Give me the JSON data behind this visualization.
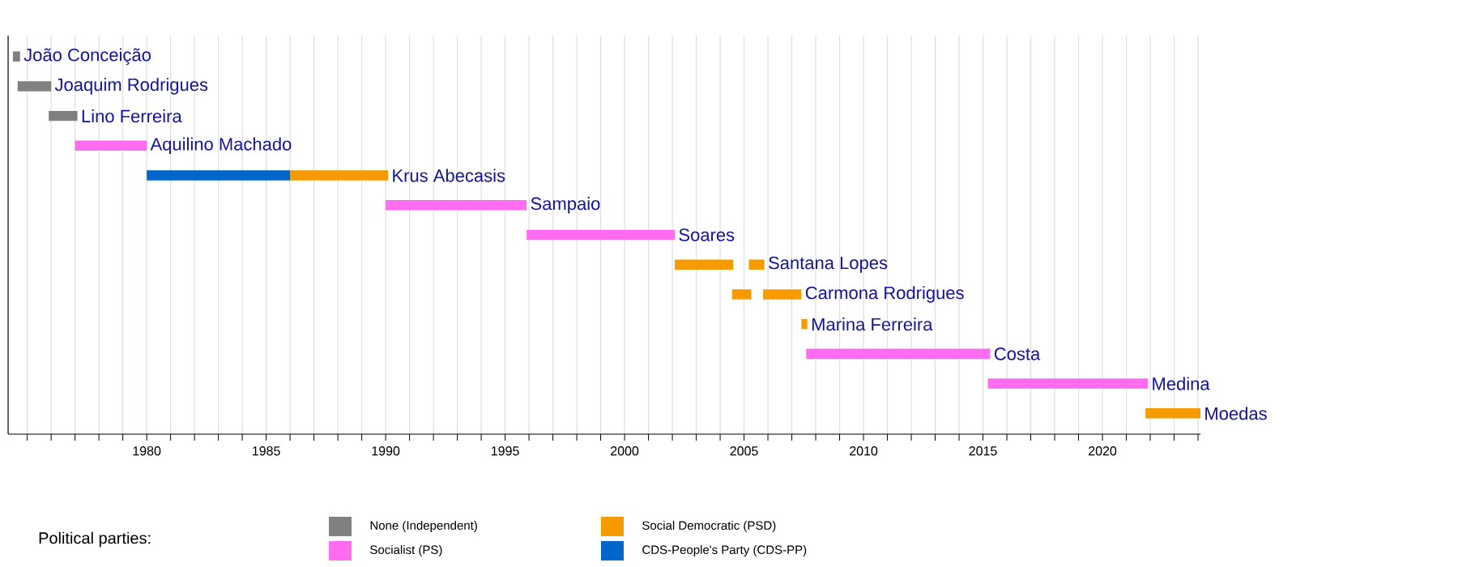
{
  "chart_data": {
    "type": "bar",
    "orientation": "horizontal",
    "legend_title": "Political parties:",
    "categories": [
      "João Conceição",
      "Joaquim Rodrigues",
      "Lino Ferreira",
      "Aquilino Machado",
      "Krus Abecasis",
      "Sampaio",
      "Soares",
      "Santana Lopes",
      "Carmona Rodrigues",
      "Marina Ferreira",
      "Costa",
      "Medina",
      "Moedas"
    ],
    "series": [
      {
        "name": "None (Independent)",
        "color": "#808080",
        "base": [
          1974.4,
          1974.6,
          1975.9,
          null,
          null,
          null,
          null,
          null,
          null,
          null,
          null,
          null,
          null
        ],
        "values": [
          0.3,
          1.4,
          1.2,
          null,
          null,
          null,
          null,
          null,
          null,
          null,
          null,
          null,
          null
        ]
      },
      {
        "name": "Socialist (PS)",
        "color": "#ff6cf0",
        "base": [
          null,
          null,
          null,
          1977.0,
          null,
          1990.0,
          1995.9,
          null,
          null,
          null,
          2007.6,
          2015.2,
          null
        ],
        "values": [
          null,
          null,
          null,
          3.0,
          null,
          5.9,
          6.2,
          null,
          null,
          null,
          7.7,
          6.7,
          null
        ]
      },
      {
        "name": "Social Democratic (PSD)",
        "color": "#f59b00",
        "base": [
          null,
          null,
          null,
          null,
          1986.0,
          null,
          null,
          2002.1,
          2004.5,
          2007.4,
          null,
          null,
          2021.8
        ],
        "values": [
          null,
          null,
          null,
          null,
          4.1,
          null,
          null,
          2.45,
          0.8,
          0.25,
          null,
          null,
          2.3
        ]
      },
      {
        "name": "CDS-People's Party (CDS-PP)",
        "color": "#0066cc",
        "base": [
          null,
          null,
          null,
          null,
          1980.0,
          null,
          null,
          null,
          null,
          null,
          null,
          null,
          null
        ],
        "values": [
          null,
          null,
          null,
          null,
          6.0,
          null,
          null,
          null,
          null,
          null,
          null,
          null,
          null
        ]
      },
      {
        "color": "#f59b00",
        "base": [
          null,
          null,
          null,
          null,
          null,
          null,
          null,
          2005.2,
          2005.8,
          null,
          null,
          null,
          null
        ],
        "values": [
          null,
          null,
          null,
          null,
          null,
          null,
          null,
          0.65,
          1.6,
          null,
          null,
          null,
          null
        ]
      }
    ],
    "xlim": [
      1974.2,
      2024.1
    ],
    "xticks": [
      {
        "value": 1975,
        "label": null
      },
      {
        "value": 1976,
        "label": null
      },
      {
        "value": 1977,
        "label": null
      },
      {
        "value": 1978,
        "label": null
      },
      {
        "value": 1979,
        "label": null
      },
      1980,
      {
        "value": 1981,
        "label": null
      },
      {
        "value": 1982,
        "label": null
      },
      {
        "value": 1983,
        "label": null
      },
      {
        "value": 1984,
        "label": null
      },
      1985,
      {
        "value": 1986,
        "label": null
      },
      {
        "value": 1987,
        "label": null
      },
      {
        "value": 1988,
        "label": null
      },
      {
        "value": 1989,
        "label": null
      },
      1990,
      {
        "value": 1991,
        "label": null
      },
      {
        "value": 1992,
        "label": null
      },
      {
        "value": 1993,
        "label": null
      },
      {
        "value": 1994,
        "label": null
      },
      1995,
      {
        "value": 1996,
        "label": null
      },
      {
        "value": 1997,
        "label": null
      },
      {
        "value": 1998,
        "label": null
      },
      {
        "value": 1999,
        "label": null
      },
      2000,
      {
        "value": 2001,
        "label": null
      },
      {
        "value": 2002,
        "label": null
      },
      {
        "value": 2003,
        "label": null
      },
      {
        "value": 2004,
        "label": null
      },
      2005,
      {
        "value": 2006,
        "label": null
      },
      {
        "value": 2007,
        "label": null
      },
      {
        "value": 2008,
        "label": null
      },
      {
        "value": 2009,
        "label": null
      },
      2010,
      {
        "value": 2011,
        "label": null
      },
      {
        "value": 2012,
        "label": null
      },
      {
        "value": 2013,
        "label": null
      },
      {
        "value": 2014,
        "label": null
      },
      2015,
      {
        "value": 2016,
        "label": null
      },
      {
        "value": 2017,
        "label": null
      },
      {
        "value": 2018,
        "label": null
      },
      {
        "value": 2019,
        "label": null
      },
      2020,
      {
        "value": 2021,
        "label": null
      },
      {
        "value": 2022,
        "label": null
      },
      {
        "value": 2023,
        "label": null
      },
      {
        "value": 2024,
        "label": null
      }
    ],
    "grid": "x",
    "legend": "bottom",
    "tick_labels": "x"
  }
}
